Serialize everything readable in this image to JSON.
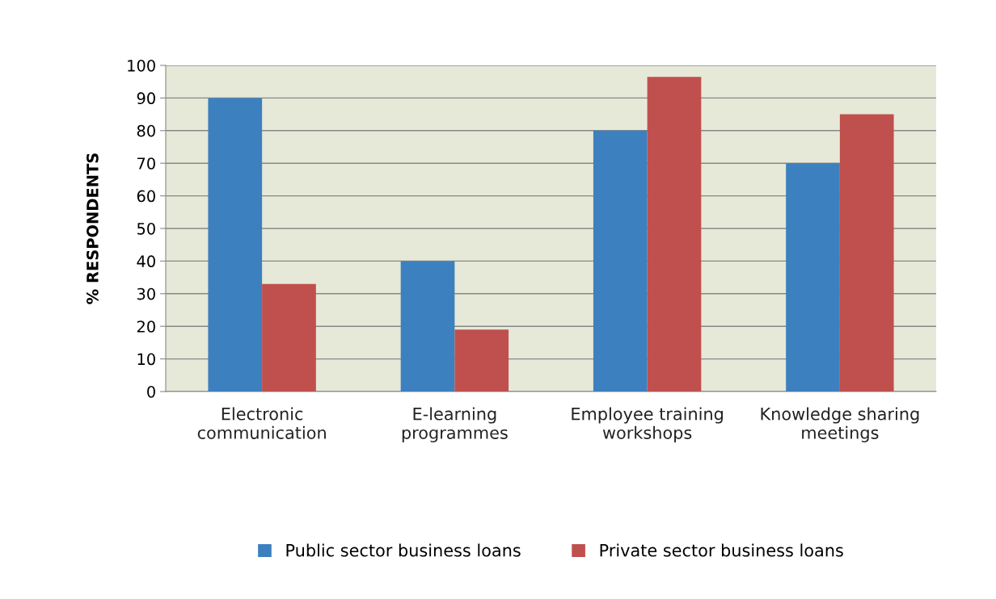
{
  "chart_data": {
    "type": "bar",
    "ylabel": "% RESPONDENTS",
    "categories": [
      "Electronic\ncommunication",
      "E-learning\nprogrammes",
      "Employee training\nworkshops",
      "Knowledge sharing\nmeetings"
    ],
    "series": [
      {
        "name": "Public sector business loans",
        "color": "#3d80bf",
        "values": [
          90,
          40,
          80,
          70
        ]
      },
      {
        "name": "Private sector business loans",
        "color": "#c0504d",
        "values": [
          33,
          19,
          96.5,
          85
        ]
      }
    ],
    "ylim": [
      0,
      100
    ],
    "yticks": [
      0,
      10,
      20,
      30,
      40,
      50,
      60,
      70,
      80,
      90,
      100
    ],
    "grid": "y",
    "legend": "bottom"
  }
}
